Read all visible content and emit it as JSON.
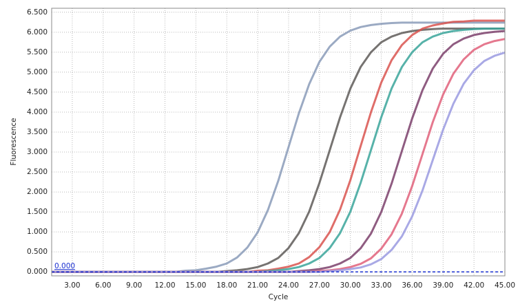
{
  "chart_data": {
    "type": "line",
    "x_label": "Cycle",
    "y_label": "Fluorescence",
    "grid": true,
    "xlim": [
      1,
      45
    ],
    "ylim": [
      -0.1,
      6.6
    ],
    "xticks": [
      {
        "value": 3,
        "label": "3.00"
      },
      {
        "value": 6,
        "label": "6.00"
      },
      {
        "value": 9,
        "label": "9.00"
      },
      {
        "value": 12,
        "label": "12.00"
      },
      {
        "value": 15,
        "label": "15.00"
      },
      {
        "value": 18,
        "label": "18.00"
      },
      {
        "value": 21,
        "label": "21.00"
      },
      {
        "value": 24,
        "label": "24.00"
      },
      {
        "value": 27,
        "label": "27.00"
      },
      {
        "value": 30,
        "label": "30.00"
      },
      {
        "value": 33,
        "label": "33.00"
      },
      {
        "value": 36,
        "label": "36.00"
      },
      {
        "value": 39,
        "label": "39.00"
      },
      {
        "value": 42,
        "label": "42.00"
      },
      {
        "value": 45,
        "label": "45.00"
      }
    ],
    "yticks": [
      {
        "value": 0,
        "label": "0.000"
      },
      {
        "value": 0.5,
        "label": "0.500"
      },
      {
        "value": 1,
        "label": "1.000"
      },
      {
        "value": 1.5,
        "label": "1.500"
      },
      {
        "value": 2,
        "label": "2.000"
      },
      {
        "value": 2.5,
        "label": "2.500"
      },
      {
        "value": 3,
        "label": "3.000"
      },
      {
        "value": 3.5,
        "label": "3.500"
      },
      {
        "value": 4,
        "label": "4.000"
      },
      {
        "value": 4.5,
        "label": "4.500"
      },
      {
        "value": 5,
        "label": "5.000"
      },
      {
        "value": 5.5,
        "label": "5.500"
      },
      {
        "value": 6,
        "label": "6.000"
      },
      {
        "value": 6.5,
        "label": "6.500"
      }
    ],
    "threshold": {
      "value": 0,
      "label": "0.000",
      "color": "#1a2fd0"
    },
    "x": [
      1,
      2,
      3,
      4,
      5,
      6,
      7,
      8,
      9,
      10,
      11,
      12,
      13,
      14,
      15,
      16,
      17,
      18,
      19,
      20,
      21,
      22,
      23,
      24,
      25,
      26,
      27,
      28,
      29,
      30,
      31,
      32,
      33,
      34,
      35,
      36,
      37,
      38,
      39,
      40,
      41,
      42,
      43,
      44,
      45
    ],
    "series": [
      {
        "color": "#8a9bb8",
        "values": [
          0,
          0,
          0,
          0,
          0,
          0,
          0,
          0,
          0,
          0,
          0,
          0,
          0,
          0.03,
          0.04,
          0.08,
          0.13,
          0.21,
          0.36,
          0.61,
          0.99,
          1.55,
          2.28,
          3.13,
          3.97,
          4.7,
          5.26,
          5.64,
          5.89,
          6.04,
          6.13,
          6.18,
          6.21,
          6.23,
          6.24,
          6.24,
          6.24,
          6.24,
          6.24,
          6.24,
          6.24,
          6.24,
          6.24,
          6.24,
          6.24
        ]
      },
      {
        "color": "#5e5a58",
        "values": [
          0,
          0,
          0,
          0,
          0,
          0,
          0,
          0,
          0,
          0,
          0,
          0,
          0,
          0,
          0,
          0,
          0,
          0.02,
          0.04,
          0.07,
          0.12,
          0.21,
          0.35,
          0.6,
          0.97,
          1.51,
          2.23,
          3.05,
          3.87,
          4.59,
          5.13,
          5.5,
          5.75,
          5.89,
          5.98,
          6.03,
          6.06,
          6.08,
          6.09,
          6.09,
          6.09,
          6.09,
          6.09,
          6.09,
          6.09
        ]
      },
      {
        "color": "#d9534f",
        "values": [
          0,
          0,
          0,
          0,
          0,
          0,
          0,
          0,
          0,
          0,
          0,
          0,
          0,
          0,
          0,
          0,
          0,
          0,
          0,
          0,
          0.03,
          0.04,
          0.08,
          0.13,
          0.21,
          0.37,
          0.62,
          1.0,
          1.56,
          2.3,
          3.15,
          4.0,
          4.74,
          5.3,
          5.68,
          5.93,
          6.09,
          6.17,
          6.22,
          6.26,
          6.27,
          6.29,
          6.29,
          6.29,
          6.29
        ]
      },
      {
        "color": "#3aa59a",
        "values": [
          0,
          0,
          0,
          0,
          0,
          0,
          0,
          0,
          0,
          0,
          0,
          0,
          0,
          0,
          0,
          0,
          0,
          0,
          0,
          0,
          0,
          0.02,
          0.04,
          0.07,
          0.12,
          0.21,
          0.35,
          0.6,
          0.97,
          1.51,
          2.23,
          3.05,
          3.87,
          4.59,
          5.13,
          5.5,
          5.75,
          5.89,
          5.98,
          6.03,
          6.06,
          6.08,
          6.09,
          6.09,
          6.09
        ]
      },
      {
        "color": "#7b3f6b",
        "values": [
          0,
          0,
          0,
          0,
          0,
          0,
          0,
          0,
          0,
          0,
          0,
          0,
          0,
          0,
          0,
          0,
          0,
          0,
          0,
          0,
          0,
          0,
          0,
          0,
          0.02,
          0.04,
          0.07,
          0.12,
          0.21,
          0.35,
          0.59,
          0.96,
          1.5,
          2.21,
          3.03,
          3.84,
          4.55,
          5.09,
          5.46,
          5.7,
          5.84,
          5.93,
          5.98,
          6.01,
          6.03
        ]
      },
      {
        "color": "#e0607a",
        "values": [
          0,
          0,
          0,
          0,
          0,
          0,
          0,
          0,
          0,
          0,
          0,
          0,
          0,
          0,
          0,
          0,
          0,
          0,
          0,
          0,
          0,
          0,
          0,
          0,
          0,
          0,
          0.02,
          0.04,
          0.07,
          0.12,
          0.2,
          0.34,
          0.58,
          0.94,
          1.46,
          2.15,
          2.95,
          3.75,
          4.44,
          4.96,
          5.32,
          5.56,
          5.7,
          5.78,
          5.83
        ]
      },
      {
        "color": "#9a9ae0",
        "values": [
          0,
          0,
          0,
          0,
          0,
          0,
          0,
          0,
          0,
          0,
          0,
          0,
          0,
          0,
          0,
          0,
          0,
          0,
          0,
          0,
          0,
          0,
          0,
          0,
          0,
          0,
          0,
          0.02,
          0.04,
          0.07,
          0.11,
          0.19,
          0.32,
          0.55,
          0.89,
          1.39,
          2.04,
          2.8,
          3.56,
          4.21,
          4.71,
          5.05,
          5.28,
          5.41,
          5.49
        ]
      }
    ]
  }
}
